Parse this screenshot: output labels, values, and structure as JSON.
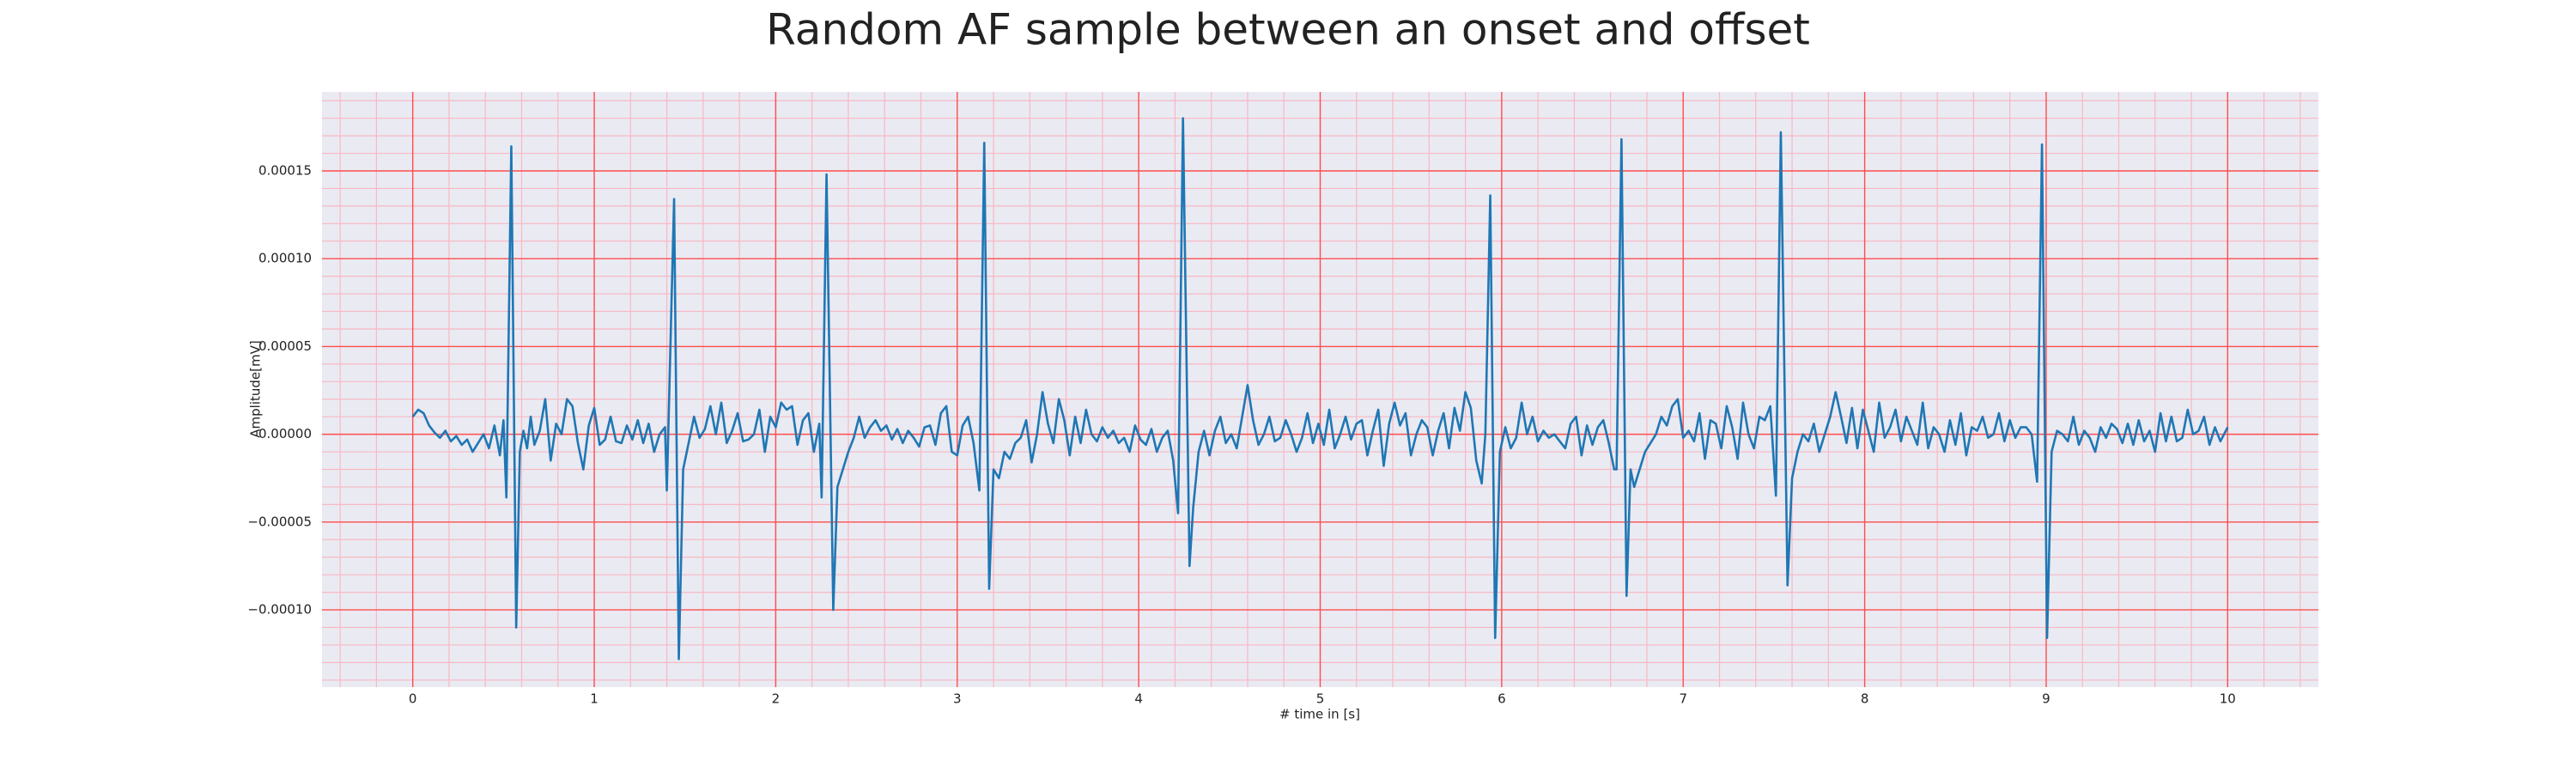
{
  "chart_data": {
    "type": "line",
    "title": "Random AF sample between an onset and offset",
    "xlabel": "# time in [s]",
    "ylabel": "Amplitude[mV]",
    "xlim": [
      -0.5,
      10.5
    ],
    "ylim": [
      -0.000144,
      0.000195
    ],
    "xticks": [
      0,
      1,
      2,
      3,
      4,
      5,
      6,
      7,
      8,
      9,
      10
    ],
    "yticks": [
      {
        "value": -0.0001,
        "label": "−0.00010"
      },
      {
        "value": -5e-05,
        "label": "−0.00005"
      },
      {
        "value": 0,
        "label": "0.00000"
      },
      {
        "value": 5e-05,
        "label": "0.00005"
      },
      {
        "value": 0.0001,
        "label": "0.00010"
      },
      {
        "value": 0.00015,
        "label": "0.00015"
      }
    ],
    "xminorticks": [
      -0.4,
      -0.2,
      0.2,
      0.4,
      0.6,
      0.8,
      1.2,
      1.4,
      1.6,
      1.8,
      2.2,
      2.4,
      2.6,
      2.8,
      3.2,
      3.4,
      3.6,
      3.8,
      4.2,
      4.4,
      4.6,
      4.8,
      5.2,
      5.4,
      5.6,
      5.8,
      6.2,
      6.4,
      6.6,
      6.8,
      7.2,
      7.4,
      7.6,
      7.8,
      8.2,
      8.4,
      8.6,
      8.8,
      9.2,
      9.4,
      9.6,
      9.8,
      10.2,
      10.4
    ],
    "yminorticks": [
      -0.00014,
      -0.00013,
      -0.00012,
      -0.00011,
      -9e-05,
      -8e-05,
      -7e-05,
      -6e-05,
      -4e-05,
      -3e-05,
      -2e-05,
      -1e-05,
      1e-05,
      2e-05,
      3e-05,
      4e-05,
      6e-05,
      7e-05,
      8e-05,
      9e-05,
      0.00011,
      0.00012,
      0.00013,
      0.00014,
      0.00016,
      0.00017,
      0.00018,
      0.00019
    ],
    "grid": true,
    "grid_color": "#ff4d4d",
    "minor_grid_color": "#f7b8c4",
    "background": "#eaeaf2",
    "series": [
      {
        "color": "#1f77b4",
        "x": [
          0,
          0.03,
          0.06,
          0.09,
          0.12,
          0.15,
          0.18,
          0.21,
          0.24,
          0.27,
          0.3,
          0.33,
          0.36,
          0.39,
          0.42,
          0.45,
          0.48,
          0.5,
          0.516,
          0.543,
          0.57,
          0.59,
          0.61,
          0.63,
          0.65,
          0.67,
          0.7,
          0.73,
          0.76,
          0.79,
          0.82,
          0.85,
          0.88,
          0.91,
          0.94,
          0.97,
          1.0,
          1.03,
          1.06,
          1.09,
          1.12,
          1.15,
          1.18,
          1.21,
          1.24,
          1.27,
          1.3,
          1.33,
          1.36,
          1.39,
          1.4,
          1.44,
          1.466,
          1.49,
          1.52,
          1.55,
          1.58,
          1.61,
          1.64,
          1.67,
          1.7,
          1.73,
          1.76,
          1.79,
          1.82,
          1.85,
          1.88,
          1.91,
          1.94,
          1.97,
          2.0,
          2.03,
          2.06,
          2.09,
          2.12,
          2.15,
          2.18,
          2.21,
          2.24,
          2.253,
          2.28,
          2.317,
          2.34,
          2.37,
          2.4,
          2.43,
          2.46,
          2.49,
          2.52,
          2.55,
          2.58,
          2.61,
          2.64,
          2.67,
          2.7,
          2.73,
          2.76,
          2.79,
          2.82,
          2.85,
          2.88,
          2.91,
          2.94,
          2.97,
          3.0,
          3.03,
          3.06,
          3.09,
          3.122,
          3.149,
          3.176,
          3.2,
          3.23,
          3.26,
          3.29,
          3.32,
          3.35,
          3.38,
          3.41,
          3.44,
          3.47,
          3.5,
          3.53,
          3.56,
          3.59,
          3.62,
          3.65,
          3.68,
          3.71,
          3.74,
          3.77,
          3.8,
          3.83,
          3.86,
          3.89,
          3.92,
          3.95,
          3.98,
          4.01,
          4.04,
          4.07,
          4.1,
          4.13,
          4.16,
          4.19,
          4.217,
          4.244,
          4.28,
          4.3,
          4.33,
          4.36,
          4.39,
          4.42,
          4.45,
          4.48,
          4.51,
          4.54,
          4.57,
          4.6,
          4.63,
          4.66,
          4.69,
          4.72,
          4.75,
          4.78,
          4.81,
          4.84,
          4.87,
          4.9,
          4.93,
          4.96,
          4.99,
          5.02,
          5.05,
          5.08,
          5.11,
          5.14,
          5.17,
          5.2,
          5.23,
          5.26,
          5.29,
          5.32,
          5.35,
          5.38,
          5.41,
          5.44,
          5.47,
          5.5,
          5.53,
          5.56,
          5.59,
          5.62,
          5.65,
          5.68,
          5.71,
          5.74,
          5.77,
          5.8,
          5.83,
          5.86,
          5.89,
          5.91,
          5.937,
          5.964,
          5.99,
          6.02,
          6.05,
          6.08,
          6.11,
          6.14,
          6.17,
          6.2,
          6.23,
          6.26,
          6.29,
          6.32,
          6.35,
          6.38,
          6.41,
          6.44,
          6.47,
          6.5,
          6.53,
          6.56,
          6.59,
          6.62,
          6.633,
          6.66,
          6.688,
          6.71,
          6.73,
          6.76,
          6.79,
          6.82,
          6.85,
          6.88,
          6.91,
          6.94,
          6.97,
          7.0,
          7.03,
          7.06,
          7.09,
          7.12,
          7.15,
          7.18,
          7.21,
          7.24,
          7.27,
          7.3,
          7.33,
          7.36,
          7.39,
          7.42,
          7.45,
          7.48,
          7.511,
          7.538,
          7.575,
          7.6,
          7.63,
          7.66,
          7.69,
          7.72,
          7.75,
          7.78,
          7.81,
          7.84,
          7.87,
          7.9,
          7.93,
          7.96,
          7.99,
          8.02,
          8.05,
          8.08,
          8.11,
          8.14,
          8.17,
          8.2,
          8.23,
          8.26,
          8.29,
          8.32,
          8.35,
          8.38,
          8.41,
          8.44,
          8.47,
          8.5,
          8.53,
          8.56,
          8.59,
          8.62,
          8.65,
          8.68,
          8.71,
          8.74,
          8.77,
          8.8,
          8.83,
          8.86,
          8.89,
          8.92,
          8.95,
          8.977,
          9.005,
          9.03,
          9.06,
          9.09,
          9.12,
          9.15,
          9.18,
          9.21,
          9.24,
          9.27,
          9.3,
          9.33,
          9.36,
          9.39,
          9.42,
          9.45,
          9.48,
          9.51,
          9.54,
          9.57,
          9.6,
          9.63,
          9.66,
          9.69,
          9.72,
          9.75,
          9.78,
          9.81,
          9.84,
          9.87,
          9.9,
          9.93,
          9.96,
          9.99,
          10.0
        ],
        "values": [
          1e-05,
          1.4e-05,
          1.2e-05,
          5e-06,
          1e-06,
          -2e-06,
          2e-06,
          -4e-06,
          -1e-06,
          -6e-06,
          -3e-06,
          -1e-05,
          -5e-06,
          0,
          -8e-06,
          5e-06,
          -1.2e-05,
          8e-06,
          -3.6e-05,
          0.000164,
          -0.00011,
          -1e-05,
          2e-06,
          -8e-06,
          1e-05,
          -6e-06,
          2e-06,
          2e-05,
          -1.5e-05,
          6e-06,
          0,
          2e-05,
          1.6e-05,
          -5e-06,
          -2e-05,
          5e-06,
          1.5e-05,
          -6e-06,
          -3e-06,
          1e-05,
          -4e-06,
          -5e-06,
          5e-06,
          -3e-06,
          8e-06,
          -5e-06,
          6e-06,
          -1e-05,
          0,
          4e-06,
          -3.2e-05,
          0.000134,
          -0.000128,
          -2e-05,
          -5e-06,
          1e-05,
          -2e-06,
          3e-06,
          1.6e-05,
          0,
          1.8e-05,
          -5e-06,
          2e-06,
          1.2e-05,
          -4e-06,
          -3e-06,
          0,
          1.4e-05,
          -1e-05,
          1e-05,
          4e-06,
          1.8e-05,
          1.4e-05,
          1.6e-05,
          -6e-06,
          8e-06,
          1.2e-05,
          -1e-05,
          6e-06,
          -3.6e-05,
          0.000148,
          -0.0001,
          -3e-05,
          -2e-05,
          -1e-05,
          -2e-06,
          1e-05,
          -2e-06,
          4e-06,
          8e-06,
          2e-06,
          5e-06,
          -3e-06,
          3e-06,
          -5e-06,
          2e-06,
          -2e-06,
          -7e-06,
          4e-06,
          5e-06,
          -6e-06,
          1.2e-05,
          1.6e-05,
          -1e-05,
          -1.2e-05,
          5e-06,
          1e-05,
          -5e-06,
          -3.2e-05,
          0.000166,
          -8.8e-05,
          -2e-05,
          -2.5e-05,
          -1e-05,
          -1.4e-05,
          -5e-06,
          -2e-06,
          8e-06,
          -1.6e-05,
          0,
          2.4e-05,
          6e-06,
          -5e-06,
          2e-05,
          8e-06,
          -1.2e-05,
          1e-05,
          -5e-06,
          1.4e-05,
          0,
          -4e-06,
          4e-06,
          -2e-06,
          2e-06,
          -5e-06,
          -2e-06,
          -1e-05,
          5e-06,
          -3e-06,
          -6e-06,
          3e-06,
          -1e-05,
          -2e-06,
          2e-06,
          -1.5e-05,
          -4.5e-05,
          0.00018,
          -7.5e-05,
          -4.2e-05,
          -1e-05,
          2e-06,
          -1.2e-05,
          2e-06,
          1e-05,
          -5e-06,
          0,
          -8e-06,
          1e-05,
          2.8e-05,
          8e-06,
          -6e-06,
          0,
          1e-05,
          -4e-06,
          -2e-06,
          8e-06,
          0,
          -1e-05,
          -2e-06,
          1.2e-05,
          -5e-06,
          6e-06,
          -6e-06,
          1.4e-05,
          -8e-06,
          0,
          1e-05,
          -3e-06,
          6e-06,
          8e-06,
          -1.2e-05,
          2e-06,
          1.4e-05,
          -1.8e-05,
          6e-06,
          1.8e-05,
          5e-06,
          1.2e-05,
          -1.2e-05,
          0,
          8e-06,
          4e-06,
          -1.2e-05,
          2e-06,
          1.2e-05,
          -8e-06,
          1.5e-05,
          2e-06,
          2.4e-05,
          1.5e-05,
          -1.5e-05,
          -2.8e-05,
          0,
          0.000136,
          -0.000116,
          -1e-05,
          4e-06,
          -8e-06,
          -2e-06,
          1.8e-05,
          0,
          1e-05,
          -4e-06,
          2e-06,
          -2e-06,
          0,
          -4e-06,
          -8e-06,
          6e-06,
          1e-05,
          -1.2e-05,
          5e-06,
          -6e-06,
          4e-06,
          8e-06,
          -5e-06,
          -2e-05,
          -2e-05,
          0.000168,
          -9.2e-05,
          -2e-05,
          -3e-05,
          -2e-05,
          -1e-05,
          -5e-06,
          0,
          1e-05,
          5e-06,
          1.6e-05,
          2e-05,
          -2e-06,
          2e-06,
          -4e-06,
          1.2e-05,
          -1.4e-05,
          8e-06,
          6e-06,
          -8e-06,
          1.6e-05,
          4e-06,
          -1.4e-05,
          1.8e-05,
          0,
          -8e-06,
          1e-05,
          8e-06,
          1.6e-05,
          -3.5e-05,
          0.000172,
          -8.6e-05,
          -2.5e-05,
          -1e-05,
          0,
          -4e-06,
          6e-06,
          -1e-05,
          0,
          1e-05,
          2.4e-05,
          1e-05,
          -5e-06,
          1.5e-05,
          -8e-06,
          1.4e-05,
          2e-06,
          -1e-05,
          1.8e-05,
          -2e-06,
          4e-06,
          1.4e-05,
          -4e-06,
          1e-05,
          2e-06,
          -6e-06,
          1.8e-05,
          -8e-06,
          4e-06,
          0,
          -1e-05,
          8e-06,
          -6e-06,
          1.2e-05,
          -1.2e-05,
          4e-06,
          2e-06,
          1e-05,
          -2e-06,
          0,
          1.2e-05,
          -4e-06,
          8e-06,
          -2e-06,
          4e-06,
          4e-06,
          0,
          -2.7e-05,
          0.000165,
          -0.000116,
          -1e-05,
          2e-06,
          0,
          -4e-06,
          1e-05,
          -6e-06,
          2e-06,
          -2e-06,
          -1e-05,
          4e-06,
          -2e-06,
          6e-06,
          3e-06,
          -5e-06,
          6e-06,
          -6e-06,
          8e-06,
          -4e-06,
          2e-06,
          -1e-05,
          1.2e-05,
          -4e-06,
          1e-05,
          -4e-06,
          -2e-06,
          1.4e-05,
          0,
          2e-06,
          1e-05,
          -6e-06,
          4e-06,
          -4e-06,
          2e-06,
          4e-06
        ]
      }
    ]
  }
}
